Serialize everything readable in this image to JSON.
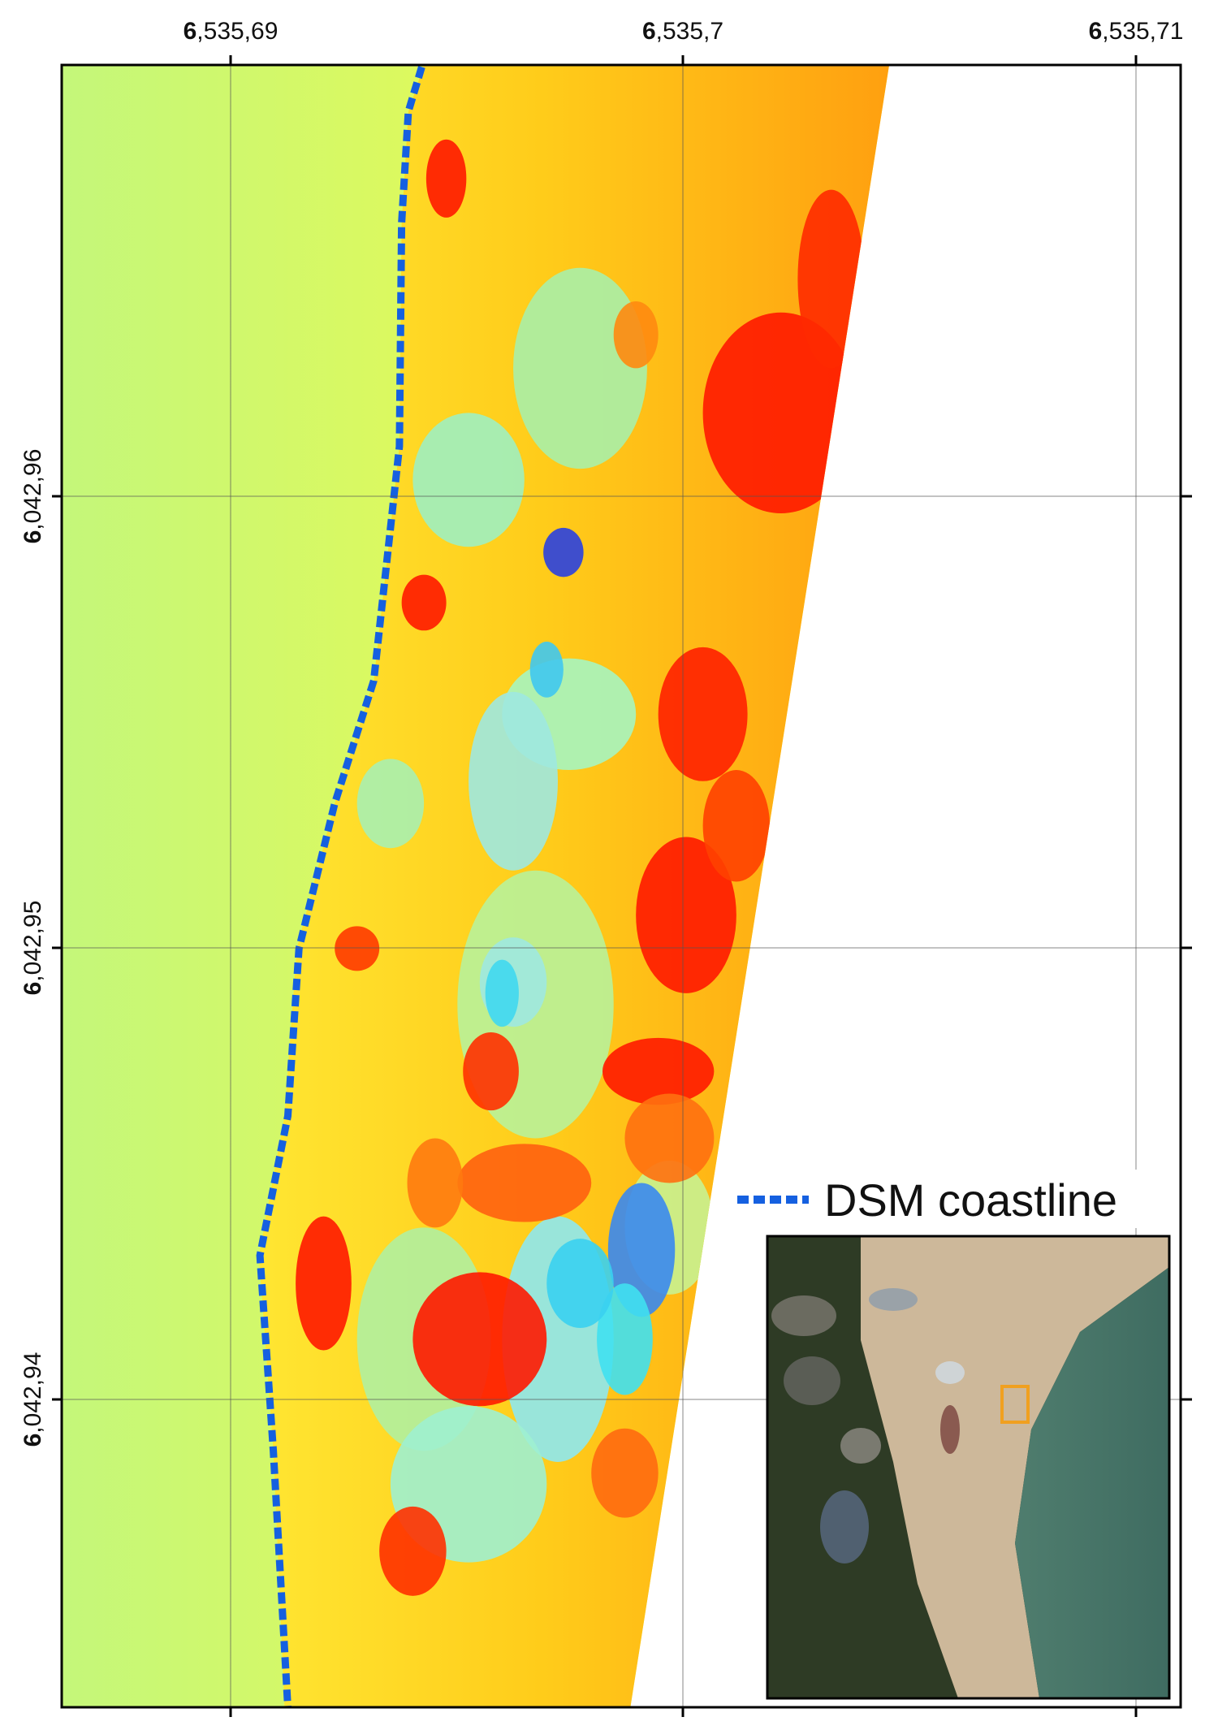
{
  "map": {
    "x_ticks": [
      "6,535,69",
      "6,535,7",
      "6,535,71"
    ],
    "y_ticks": [
      "6,042,96",
      "6,042,95",
      "6,042,94"
    ],
    "legend": "DSM coastline"
  }
}
